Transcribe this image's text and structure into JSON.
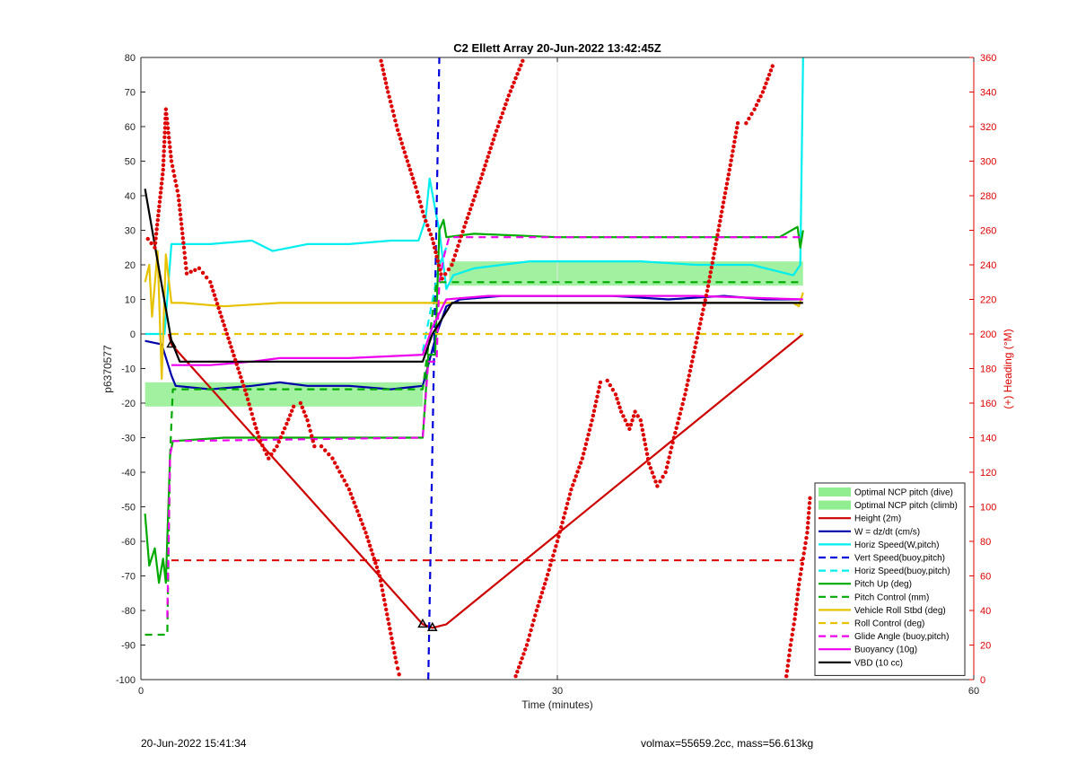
{
  "footer": {
    "timestamp": "20-Jun-2022 15:41:34",
    "mass_info": "volmax=55659.2cc, mass=56.613kg"
  },
  "chart_data": {
    "type": "line",
    "title": "C2 Ellett Array 20-Jun-2022 13:42:45Z",
    "xlabel": "Time (minutes)",
    "ylabel_left": "p6370577",
    "ylabel_right": "(+) Heading (°M)",
    "xlim": [
      0,
      60
    ],
    "ylim_left": [
      -100,
      80
    ],
    "ylim_right": [
      0,
      360
    ],
    "x_ticks": [
      0,
      30,
      60
    ],
    "y_ticks_left": [
      80,
      70,
      60,
      50,
      40,
      30,
      20,
      10,
      0,
      -10,
      -20,
      -30,
      -40,
      -50,
      -60,
      -70,
      -80,
      -90,
      -100
    ],
    "y_ticks_right": [
      360,
      340,
      320,
      300,
      280,
      260,
      240,
      220,
      200,
      180,
      160,
      140,
      120,
      100,
      80,
      60,
      40,
      20,
      0
    ],
    "grid": "x-only at 30",
    "legend_position": "bottom-right",
    "colors": {
      "optimal": "#90ee90",
      "height": "#cc0000",
      "w": "#0000aa",
      "horiz": "#00eeee",
      "vert_buoy": "#0000dd",
      "pitch_up": "#00aa00",
      "roll": "#e6c200",
      "glide": "#ee00ee",
      "buoyancy": "#ee00ee",
      "vbd": "#000000",
      "heading": "#dd0000"
    },
    "bands": [
      {
        "name": "Optimal NCP pitch (dive)",
        "x": [
          0.3,
          20.3
        ],
        "y": [
          -21,
          -14
        ]
      },
      {
        "name": "Optimal NCP pitch (climb)",
        "x": [
          22.2,
          47.7
        ],
        "y": [
          14,
          21
        ]
      }
    ],
    "series": [
      {
        "name": "Height (2m)",
        "style": "solid",
        "color": "#cc0000",
        "points": [
          [
            2.0,
            0
          ],
          [
            2.2,
            -3
          ],
          [
            20.3,
            -84
          ],
          [
            21.0,
            -85
          ],
          [
            22.0,
            -84
          ],
          [
            47.7,
            0
          ]
        ]
      },
      {
        "name": "W = dz/dt (cm/s)",
        "style": "solid",
        "color": "#0000aa",
        "points": [
          [
            0.3,
            -2
          ],
          [
            1.5,
            -3
          ],
          [
            2.2,
            -12
          ],
          [
            2.5,
            -15
          ],
          [
            5,
            -16
          ],
          [
            8,
            -15
          ],
          [
            10,
            -14
          ],
          [
            12,
            -15
          ],
          [
            15,
            -15
          ],
          [
            18,
            -16
          ],
          [
            20.3,
            -15
          ],
          [
            21.3,
            0
          ],
          [
            22.0,
            8
          ],
          [
            23,
            10
          ],
          [
            26,
            11
          ],
          [
            30,
            11
          ],
          [
            34,
            11
          ],
          [
            38,
            10
          ],
          [
            42,
            11
          ],
          [
            45,
            10
          ],
          [
            47.5,
            10
          ]
        ]
      },
      {
        "name": "Horiz Speed(W,pitch)",
        "style": "solid",
        "color": "#00eeee",
        "points": [
          [
            0.3,
            0
          ],
          [
            1.7,
            0
          ],
          [
            2.2,
            26
          ],
          [
            5,
            26
          ],
          [
            8,
            27
          ],
          [
            9.5,
            24
          ],
          [
            12,
            26
          ],
          [
            15,
            26
          ],
          [
            18,
            27
          ],
          [
            20.0,
            27
          ],
          [
            20.5,
            33
          ],
          [
            20.8,
            45
          ],
          [
            21.3,
            34
          ],
          [
            21.5,
            30
          ],
          [
            22.0,
            13
          ],
          [
            22.5,
            17
          ],
          [
            24,
            19
          ],
          [
            28,
            21
          ],
          [
            32,
            21
          ],
          [
            36,
            21
          ],
          [
            40,
            20
          ],
          [
            44,
            20
          ],
          [
            47.0,
            17
          ],
          [
            47.5,
            20
          ],
          [
            47.7,
            80
          ]
        ]
      },
      {
        "name": "Vert Speed(buoy,pitch)",
        "style": "dashed",
        "color": "#0000dd",
        "points": [
          [
            20.7,
            -100
          ],
          [
            21.5,
            80
          ]
        ]
      },
      {
        "name": "Horiz Speed(buoy,pitch)",
        "style": "dashed",
        "color": "#00eeee",
        "points": [
          [
            20.3,
            -5
          ],
          [
            21.5,
            20
          ],
          [
            22.0,
            25
          ]
        ]
      },
      {
        "name": "Pitch Up (deg)",
        "style": "solid",
        "color": "#00aa00",
        "points": [
          [
            0.3,
            -52
          ],
          [
            0.6,
            -67
          ],
          [
            1.0,
            -62
          ],
          [
            1.3,
            -72
          ],
          [
            1.6,
            -65
          ],
          [
            1.8,
            -72
          ],
          [
            2.1,
            -35
          ],
          [
            2.3,
            -31
          ],
          [
            6,
            -30
          ],
          [
            10,
            -30
          ],
          [
            14,
            -30
          ],
          [
            18,
            -30
          ],
          [
            20.3,
            -30
          ],
          [
            20.7,
            -6
          ],
          [
            21.2,
            -6
          ],
          [
            21.5,
            30
          ],
          [
            21.8,
            33
          ],
          [
            22.0,
            28
          ],
          [
            24,
            29
          ],
          [
            30,
            28
          ],
          [
            36,
            28
          ],
          [
            42,
            28
          ],
          [
            46,
            28
          ],
          [
            47.3,
            31
          ],
          [
            47.5,
            25
          ],
          [
            47.7,
            30
          ]
        ]
      },
      {
        "name": "Pitch Control (mm)",
        "style": "dashed",
        "color": "#00aa00",
        "points": [
          [
            0.3,
            -87
          ],
          [
            1.9,
            -87
          ],
          [
            2.1,
            -35
          ],
          [
            2.3,
            -16
          ],
          [
            20.3,
            -16
          ],
          [
            21.3,
            15
          ],
          [
            22.2,
            15
          ],
          [
            47.7,
            15
          ]
        ]
      },
      {
        "name": "Vehicle Roll Stbd (deg)",
        "style": "solid",
        "color": "#e6c200",
        "points": [
          [
            0.3,
            15
          ],
          [
            0.6,
            20
          ],
          [
            0.8,
            5
          ],
          [
            1.2,
            24
          ],
          [
            1.5,
            -13
          ],
          [
            1.8,
            23
          ],
          [
            2.2,
            9
          ],
          [
            3,
            9
          ],
          [
            6,
            8
          ],
          [
            10,
            9
          ],
          [
            15,
            9
          ],
          [
            20.3,
            9
          ],
          [
            21.3,
            9
          ],
          [
            22.5,
            9
          ],
          [
            30,
            9
          ],
          [
            40,
            9
          ],
          [
            47,
            9
          ],
          [
            47.4,
            8
          ],
          [
            47.7,
            12
          ]
        ]
      },
      {
        "name": "Roll Control (deg)",
        "style": "dashed",
        "color": "#e6c200",
        "points": [
          [
            2.2,
            0
          ],
          [
            47.7,
            0
          ]
        ]
      },
      {
        "name": "Glide Angle (buoy,pitch)",
        "style": "dashed",
        "color": "#ee00ee",
        "points": [
          [
            1.9,
            -82
          ],
          [
            2.1,
            -35
          ],
          [
            2.3,
            -31
          ],
          [
            20.3,
            -30
          ],
          [
            20.7,
            -8
          ],
          [
            21.3,
            -8
          ],
          [
            21.5,
            15
          ],
          [
            21.8,
            22
          ],
          [
            22.2,
            28
          ],
          [
            30,
            28
          ],
          [
            40,
            28
          ],
          [
            47.7,
            28
          ]
        ]
      },
      {
        "name": "Buoyancy (10g)",
        "style": "solid",
        "color": "#ee00ee",
        "points": [
          [
            2.2,
            -9
          ],
          [
            5,
            -9
          ],
          [
            8,
            -8
          ],
          [
            10,
            -7
          ],
          [
            15,
            -7
          ],
          [
            20.3,
            -6
          ],
          [
            21.0,
            2
          ],
          [
            22.0,
            10
          ],
          [
            25,
            11
          ],
          [
            30,
            11
          ],
          [
            40,
            11
          ],
          [
            47.7,
            10
          ]
        ]
      },
      {
        "name": "VBD (10 cc)",
        "style": "solid",
        "color": "#000000",
        "points": [
          [
            0.3,
            42
          ],
          [
            2.2,
            -2
          ],
          [
            2.8,
            -8
          ],
          [
            20.3,
            -8
          ],
          [
            21.0,
            0
          ],
          [
            22.4,
            9
          ],
          [
            30,
            9
          ],
          [
            40,
            9
          ],
          [
            47.7,
            9
          ]
        ]
      }
    ],
    "heading_points": [
      [
        0.5,
        255
      ],
      [
        1.0,
        250
      ],
      [
        1.6,
        295
      ],
      [
        1.8,
        330
      ],
      [
        2.2,
        300
      ],
      [
        2.7,
        280
      ],
      [
        3.1,
        250
      ],
      [
        3.3,
        235
      ],
      [
        4.2,
        238
      ],
      [
        5,
        230
      ],
      [
        5.8,
        210
      ],
      [
        6.6,
        190
      ],
      [
        7.6,
        165
      ],
      [
        8.2,
        148
      ],
      [
        8.6,
        138
      ],
      [
        9.2,
        128
      ],
      [
        9.8,
        135
      ],
      [
        10.5,
        148
      ],
      [
        11,
        158
      ],
      [
        11.5,
        160
      ],
      [
        12,
        150
      ],
      [
        12.5,
        135
      ],
      [
        13,
        135
      ],
      [
        13.8,
        128
      ],
      [
        15,
        110
      ],
      [
        16.2,
        85
      ],
      [
        17.2,
        60
      ],
      [
        17.8,
        35
      ],
      [
        18.4,
        10
      ],
      [
        18.6,
        3
      ],
      [
        17.3,
        358
      ],
      [
        17.8,
        340
      ],
      [
        18.5,
        318
      ],
      [
        19.2,
        300
      ],
      [
        19.8,
        285
      ],
      [
        20.4,
        268
      ],
      [
        21.0,
        255
      ],
      [
        21.7,
        232
      ],
      [
        22.4,
        240
      ],
      [
        23.3,
        262
      ],
      [
        24.5,
        290
      ],
      [
        25.5,
        315
      ],
      [
        26.5,
        338
      ],
      [
        27.5,
        358
      ],
      [
        27.0,
        2
      ],
      [
        27.8,
        20
      ],
      [
        28.5,
        40
      ],
      [
        29.2,
        58
      ],
      [
        30,
        80
      ],
      [
        31,
        110
      ],
      [
        31.8,
        128
      ],
      [
        32.5,
        150
      ],
      [
        33.1,
        172
      ],
      [
        33.6,
        173
      ],
      [
        34.2,
        165
      ],
      [
        34.6,
        155
      ],
      [
        35.2,
        145
      ],
      [
        35.6,
        155
      ],
      [
        36.0,
        150
      ],
      [
        36.6,
        125
      ],
      [
        37.2,
        112
      ],
      [
        37.8,
        120
      ],
      [
        38.4,
        140
      ],
      [
        39.2,
        165
      ],
      [
        40.0,
        195
      ],
      [
        40.8,
        225
      ],
      [
        41.6,
        260
      ],
      [
        42.4,
        295
      ],
      [
        43.0,
        322
      ],
      [
        43.6,
        322
      ],
      [
        44.2,
        330
      ],
      [
        44.8,
        340
      ],
      [
        45.5,
        355
      ],
      [
        46.5,
        2
      ],
      [
        46.8,
        20
      ],
      [
        47.1,
        35
      ],
      [
        47.4,
        55
      ],
      [
        47.7,
        70
      ],
      [
        48.0,
        85
      ],
      [
        48.2,
        105
      ]
    ],
    "heading_refline": {
      "name": "Heading reference",
      "style": "dashed",
      "color": "#dd0000",
      "y_right": 69,
      "x": [
        2.2,
        47.7
      ]
    },
    "markers": [
      [
        2.2,
        -3
      ],
      [
        20.3,
        -84
      ],
      [
        21.0,
        -85
      ]
    ],
    "legend": [
      {
        "label": "Optimal NCP pitch (dive)",
        "kind": "patch",
        "color": "#90ee90"
      },
      {
        "label": "Optimal NCP pitch (climb)",
        "kind": "patch",
        "color": "#90ee90"
      },
      {
        "label": "Height (2m)",
        "kind": "solid",
        "color": "#cc0000"
      },
      {
        "label": "W = dz/dt (cm/s)",
        "kind": "solid",
        "color": "#0000aa"
      },
      {
        "label": "Horiz Speed(W,pitch)",
        "kind": "solid",
        "color": "#00eeee"
      },
      {
        "label": "Vert Speed(buoy,pitch)",
        "kind": "dashed",
        "color": "#0000dd"
      },
      {
        "label": "Horiz Speed(buoy,pitch)",
        "kind": "dashed",
        "color": "#00eeee"
      },
      {
        "label": "Pitch Up (deg)",
        "kind": "solid",
        "color": "#00aa00"
      },
      {
        "label": "Pitch Control (mm)",
        "kind": "dashed",
        "color": "#00aa00"
      },
      {
        "label": "Vehicle Roll Stbd (deg)",
        "kind": "solid",
        "color": "#e6c200"
      },
      {
        "label": "Roll Control (deg)",
        "kind": "dashed",
        "color": "#e6c200"
      },
      {
        "label": "Glide Angle (buoy,pitch)",
        "kind": "dashed",
        "color": "#ee00ee"
      },
      {
        "label": "Buoyancy (10g)",
        "kind": "solid",
        "color": "#ee00ee"
      },
      {
        "label": "VBD (10 cc)",
        "kind": "solid",
        "color": "#000000"
      }
    ]
  }
}
